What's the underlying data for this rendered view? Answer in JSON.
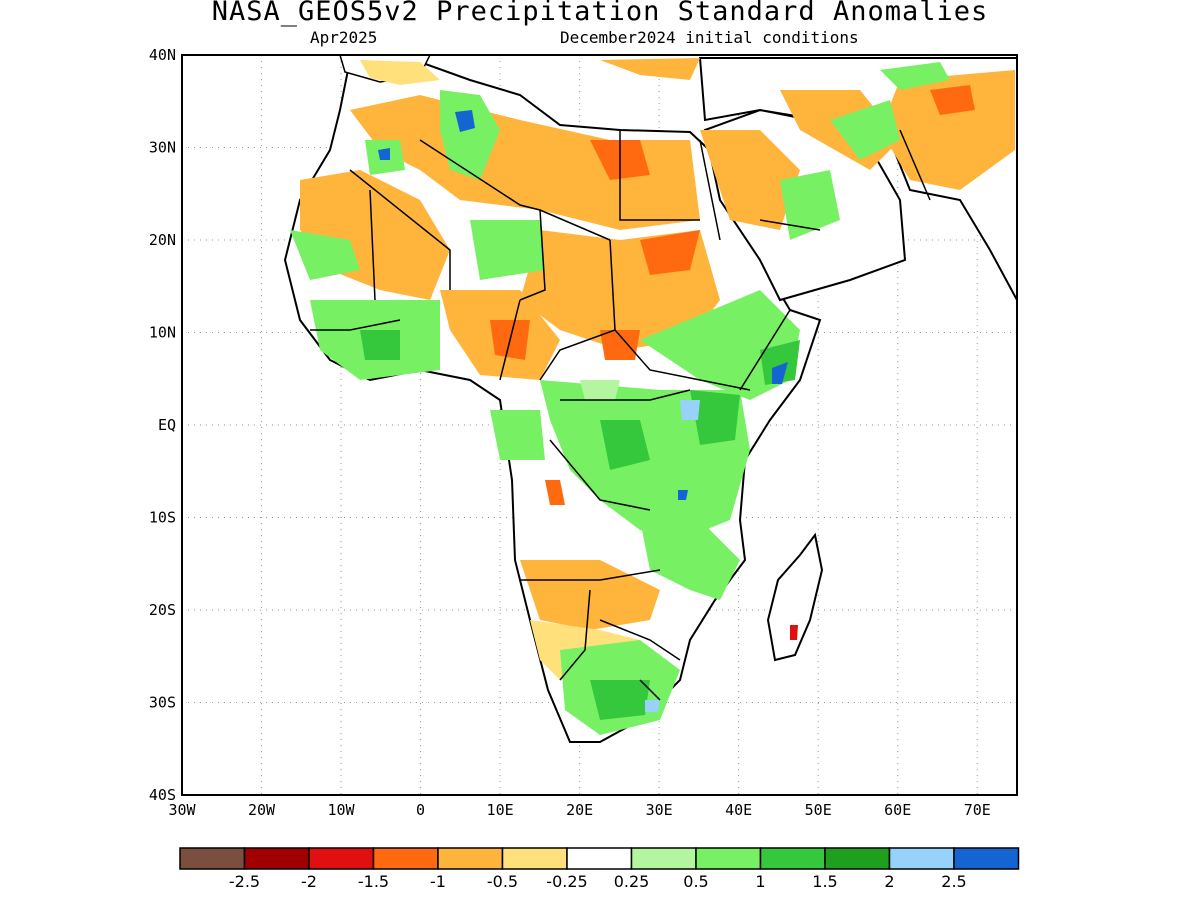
{
  "title": "NASA_GEOS5v2 Precipitation Standard Anomalies",
  "subtitle_left": "Apr2025",
  "subtitle_right": "December2024 initial conditions",
  "map": {
    "region": "Africa",
    "lon_range": [
      -30,
      75
    ],
    "lat_range": [
      -40,
      40
    ],
    "grid": "dotted",
    "lat_ticks": [
      "40N",
      "30N",
      "20N",
      "10N",
      "EQ",
      "10S",
      "20S",
      "30S",
      "40S"
    ],
    "lon_ticks": [
      "30W",
      "20W",
      "10W",
      "0",
      "10E",
      "20E",
      "30E",
      "40E",
      "50E",
      "60E",
      "70E"
    ]
  },
  "legend": {
    "colors": [
      "#7b4f3f",
      "#a00000",
      "#e01010",
      "#ff6a10",
      "#ffb43c",
      "#ffe07a",
      "#ffffff",
      "#b4f5a0",
      "#78f064",
      "#36c83c",
      "#1ea01e",
      "#96d2fa",
      "#1464d2"
    ],
    "labels": [
      "-2.5",
      "-2",
      "-1.5",
      "-1",
      "-0.5",
      "-0.25",
      "0.25",
      "0.5",
      "1",
      "1.5",
      "2",
      "2.5"
    ]
  }
}
